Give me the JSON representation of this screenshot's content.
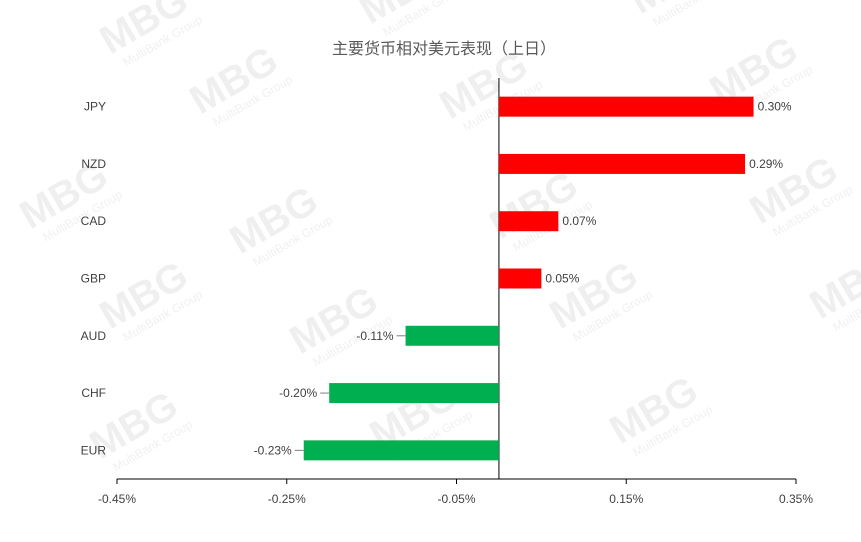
{
  "chart_data": {
    "type": "bar",
    "orientation": "horizontal",
    "title": "主要货币相对美元表现（上日）",
    "categories": [
      "JPY",
      "NZD",
      "CAD",
      "GBP",
      "AUD",
      "CHF",
      "EUR"
    ],
    "values": [
      0.3,
      0.29,
      0.07,
      0.05,
      -0.11,
      -0.2,
      -0.23
    ],
    "data_labels": [
      "0.30%",
      "0.29%",
      "0.07%",
      "0.05%",
      "-0.11%",
      "-0.20%",
      "-0.23%"
    ],
    "xlim": [
      -0.45,
      0.35
    ],
    "x_ticks": [
      -0.45,
      -0.25,
      -0.05,
      0.15,
      0.35
    ],
    "x_tick_labels": [
      "-0.45%",
      "-0.25%",
      "-0.05%",
      "0.15%",
      "0.35%"
    ],
    "xlabel": "",
    "ylabel": "",
    "grid": false,
    "legend": "none",
    "colors": {
      "positive": "#ff0000",
      "negative": "#00b050"
    }
  },
  "watermark": {
    "brand": "MBG",
    "sub": "MultiBank Group"
  }
}
